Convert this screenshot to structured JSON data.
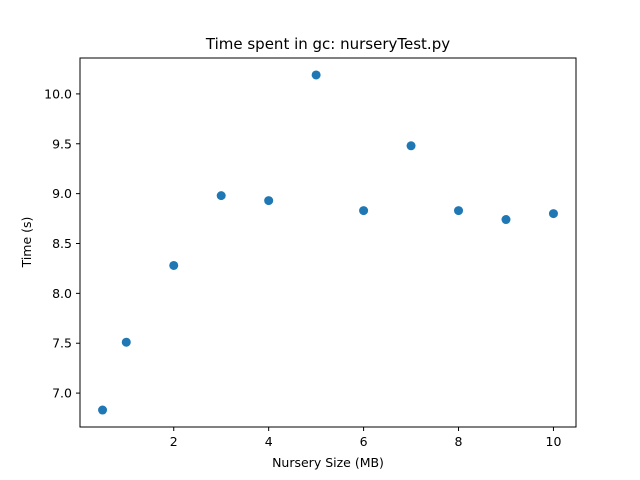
{
  "chart_data": {
    "type": "scatter",
    "title": "Time spent in gc: nurseryTest.py",
    "xlabel": "Nursery Size (MB)",
    "ylabel": "Time (s)",
    "xlim": [
      0.025,
      10.475
    ],
    "ylim": [
      6.66,
      10.36
    ],
    "xticks": [
      2,
      4,
      6,
      8,
      10
    ],
    "xtick_labels": [
      "2",
      "4",
      "6",
      "8",
      "10"
    ],
    "yticks": [
      7.0,
      7.5,
      8.0,
      8.5,
      9.0,
      9.5,
      10.0
    ],
    "ytick_labels": [
      "7.0",
      "7.5",
      "8.0",
      "8.5",
      "9.0",
      "9.5",
      "10.0"
    ],
    "grid": false,
    "marker_color": "#1f77b4",
    "points": [
      {
        "x": 0.5,
        "y": 6.83
      },
      {
        "x": 1,
        "y": 7.51
      },
      {
        "x": 2,
        "y": 8.28
      },
      {
        "x": 3,
        "y": 8.98
      },
      {
        "x": 4,
        "y": 8.93
      },
      {
        "x": 5,
        "y": 10.19
      },
      {
        "x": 6,
        "y": 8.83
      },
      {
        "x": 7,
        "y": 9.48
      },
      {
        "x": 8,
        "y": 8.83
      },
      {
        "x": 9,
        "y": 8.74
      },
      {
        "x": 10,
        "y": 8.8
      }
    ]
  }
}
